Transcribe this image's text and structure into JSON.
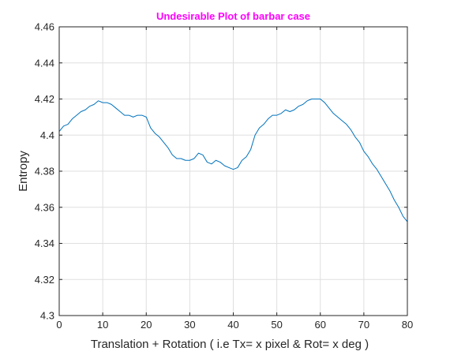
{
  "chart_data": {
    "type": "line",
    "title": "Undesirable Plot of barbar case",
    "title_color": "#ff00ff",
    "xlabel": "Translation + Rotation ( i.e Tx= x pixel & Rot= x deg )",
    "ylabel": "Entropy",
    "xlim": [
      0,
      80
    ],
    "ylim": [
      4.3,
      4.46
    ],
    "xticks": [
      0,
      10,
      20,
      30,
      40,
      50,
      60,
      70,
      80
    ],
    "yticks": [
      4.3,
      4.32,
      4.34,
      4.36,
      4.38,
      4.4,
      4.42,
      4.44,
      4.46
    ],
    "xtick_labels": [
      "0",
      "10",
      "20",
      "30",
      "40",
      "50",
      "60",
      "70",
      "80"
    ],
    "ytick_labels": [
      "4.3",
      "4.32",
      "4.34",
      "4.36",
      "4.38",
      "4.4",
      "4.42",
      "4.44",
      "4.46"
    ],
    "grid": true,
    "line_color": "#0072bd",
    "series": [
      {
        "x": [
          0,
          1,
          2,
          3,
          4,
          5,
          6,
          7,
          8,
          9,
          10,
          11,
          12,
          13,
          14,
          15,
          16,
          17,
          18,
          19,
          20,
          21,
          22,
          23,
          24,
          25,
          26,
          27,
          28,
          29,
          30,
          31,
          32,
          33,
          34,
          35,
          36,
          37,
          38,
          39,
          40,
          41,
          42,
          43,
          44,
          45,
          46,
          47,
          48,
          49,
          50,
          51,
          52,
          53,
          54,
          55,
          56,
          57,
          58,
          59,
          60,
          61,
          62,
          63,
          64,
          65,
          66,
          67,
          68,
          69,
          70,
          71,
          72,
          73,
          74,
          75,
          76,
          77,
          78,
          79,
          80
        ],
        "values": [
          4.402,
          4.405,
          4.406,
          4.409,
          4.411,
          4.413,
          4.414,
          4.416,
          4.417,
          4.419,
          4.418,
          4.418,
          4.417,
          4.415,
          4.413,
          4.411,
          4.411,
          4.41,
          4.411,
          4.411,
          4.41,
          4.404,
          4.401,
          4.399,
          4.396,
          4.393,
          4.389,
          4.387,
          4.387,
          4.386,
          4.386,
          4.387,
          4.39,
          4.389,
          4.385,
          4.384,
          4.386,
          4.385,
          4.383,
          4.382,
          4.381,
          4.382,
          4.386,
          4.388,
          4.392,
          4.4,
          4.404,
          4.406,
          4.409,
          4.411,
          4.411,
          4.412,
          4.414,
          4.413,
          4.414,
          4.416,
          4.417,
          4.419,
          4.42,
          4.42,
          4.42,
          4.418,
          4.415,
          4.412,
          4.41,
          4.408,
          4.406,
          4.403,
          4.399,
          4.396,
          4.391,
          4.388,
          4.384,
          4.381,
          4.377,
          4.373,
          4.369,
          4.364,
          4.36,
          4.355,
          4.352
        ]
      }
    ]
  }
}
